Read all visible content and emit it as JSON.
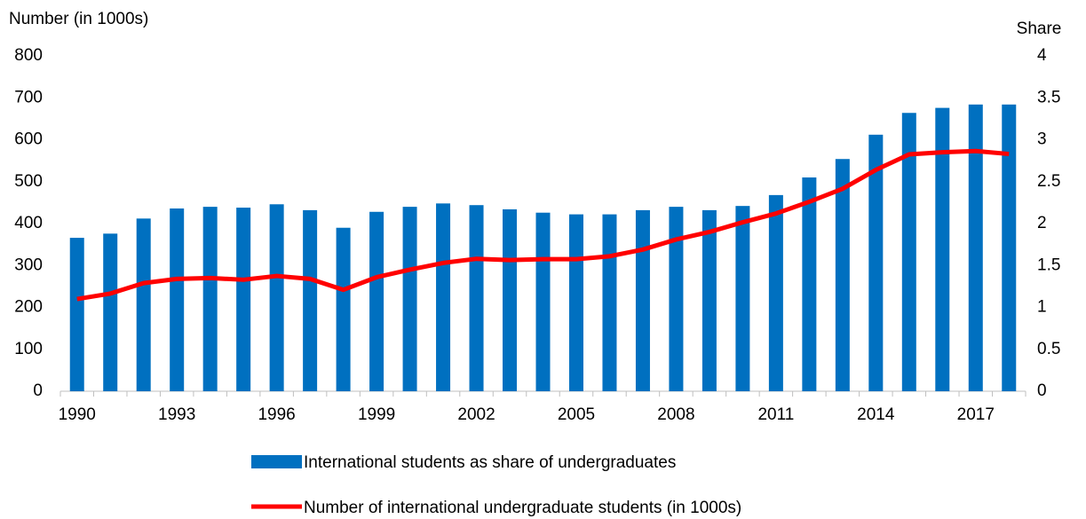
{
  "chart_data": {
    "type": "bar_line",
    "y_label": "Number (in 1000s)",
    "y2_label": "Share",
    "categories": [
      "1990",
      null,
      null,
      "1993",
      null,
      null,
      "1996",
      null,
      null,
      "1999",
      null,
      null,
      "2002",
      null,
      null,
      "2005",
      null,
      null,
      "2008",
      null,
      null,
      "2011",
      null,
      null,
      "2014",
      null,
      null,
      "2017",
      null
    ],
    "series": [
      {
        "name": "International students as share of undergraduates",
        "type": "bar",
        "axis": "y2",
        "color": "#0070c0",
        "values": [
          1.83,
          1.88,
          2.06,
          2.18,
          2.2,
          2.19,
          2.23,
          2.16,
          1.95,
          2.14,
          2.2,
          2.24,
          2.22,
          2.17,
          2.13,
          2.11,
          2.11,
          2.16,
          2.2,
          2.16,
          2.21,
          2.34,
          2.55,
          2.77,
          3.06,
          3.32,
          3.38,
          3.42,
          3.42
        ]
      },
      {
        "name": "Number of international undergraduate students (in 1000s)",
        "type": "line",
        "color": "#ff0000",
        "values": [
          220,
          233,
          258,
          268,
          270,
          266,
          275,
          268,
          242,
          272,
          290,
          306,
          316,
          313,
          315,
          315,
          322,
          338,
          362,
          380,
          403,
          424,
          452,
          483,
          528,
          565,
          570,
          573,
          566
        ]
      }
    ],
    "ylim": [
      0,
      800
    ],
    "yticks": [
      0,
      100,
      200,
      300,
      400,
      500,
      600,
      700,
      800
    ],
    "y2lim": [
      0,
      4
    ],
    "y2ticks": [
      0,
      0.5,
      1,
      1.5,
      2,
      2.5,
      3,
      3.5,
      4
    ]
  }
}
